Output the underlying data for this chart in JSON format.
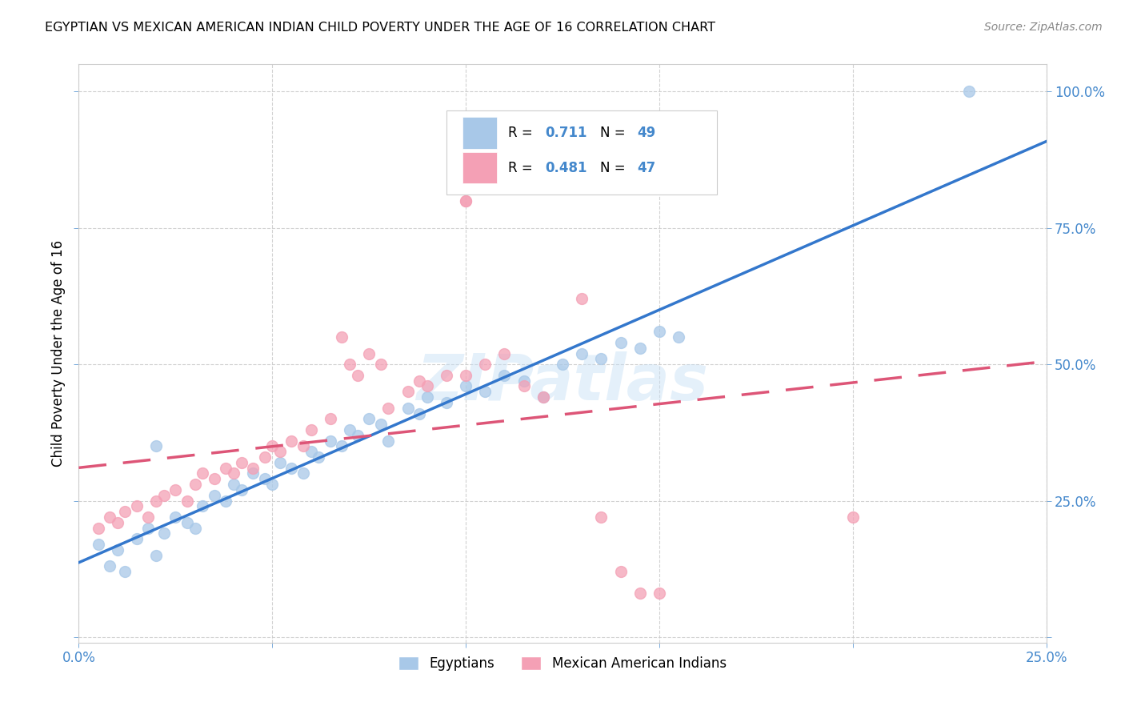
{
  "title": "EGYPTIAN VS MEXICAN AMERICAN INDIAN CHILD POVERTY UNDER THE AGE OF 16 CORRELATION CHART",
  "source": "Source: ZipAtlas.com",
  "ylabel": "Child Poverty Under the Age of 16",
  "xlim": [
    0.0,
    0.25
  ],
  "ylim": [
    0.0,
    1.05
  ],
  "xtick_positions": [
    0.0,
    0.05,
    0.1,
    0.15,
    0.2,
    0.25
  ],
  "xticklabels": [
    "0.0%",
    "",
    "",
    "",
    "",
    "25.0%"
  ],
  "ytick_positions": [
    0.0,
    0.25,
    0.5,
    0.75,
    1.0
  ],
  "yticklabels": [
    "",
    "25.0%",
    "50.0%",
    "75.0%",
    "100.0%"
  ],
  "eg_color": "#a8c8e8",
  "mx_color": "#f4a0b5",
  "eg_line_color": "#3377cc",
  "mx_line_color": "#dd5577",
  "tick_label_color": "#4488cc",
  "grid_color": "#cccccc",
  "egyptian_R": 0.711,
  "egyptian_N": 49,
  "mexican_R": 0.481,
  "mexican_N": 47,
  "legend_labels": [
    "Egyptians",
    "Mexican American Indians"
  ],
  "egyptian_scatter": [
    [
      0.005,
      0.17
    ],
    [
      0.008,
      0.13
    ],
    [
      0.01,
      0.16
    ],
    [
      0.012,
      0.12
    ],
    [
      0.015,
      0.18
    ],
    [
      0.018,
      0.2
    ],
    [
      0.02,
      0.15
    ],
    [
      0.022,
      0.19
    ],
    [
      0.025,
      0.22
    ],
    [
      0.028,
      0.21
    ],
    [
      0.03,
      0.2
    ],
    [
      0.032,
      0.24
    ],
    [
      0.035,
      0.26
    ],
    [
      0.038,
      0.25
    ],
    [
      0.04,
      0.28
    ],
    [
      0.042,
      0.27
    ],
    [
      0.045,
      0.3
    ],
    [
      0.048,
      0.29
    ],
    [
      0.05,
      0.28
    ],
    [
      0.052,
      0.32
    ],
    [
      0.055,
      0.31
    ],
    [
      0.058,
      0.3
    ],
    [
      0.06,
      0.34
    ],
    [
      0.062,
      0.33
    ],
    [
      0.065,
      0.36
    ],
    [
      0.068,
      0.35
    ],
    [
      0.07,
      0.38
    ],
    [
      0.072,
      0.37
    ],
    [
      0.075,
      0.4
    ],
    [
      0.078,
      0.39
    ],
    [
      0.08,
      0.36
    ],
    [
      0.085,
      0.42
    ],
    [
      0.088,
      0.41
    ],
    [
      0.09,
      0.44
    ],
    [
      0.095,
      0.43
    ],
    [
      0.1,
      0.46
    ],
    [
      0.105,
      0.45
    ],
    [
      0.11,
      0.48
    ],
    [
      0.115,
      0.47
    ],
    [
      0.12,
      0.44
    ],
    [
      0.125,
      0.5
    ],
    [
      0.13,
      0.52
    ],
    [
      0.135,
      0.51
    ],
    [
      0.14,
      0.54
    ],
    [
      0.145,
      0.53
    ],
    [
      0.15,
      0.56
    ],
    [
      0.155,
      0.55
    ],
    [
      0.23,
      1.0
    ],
    [
      0.02,
      0.35
    ]
  ],
  "mexican_scatter": [
    [
      0.005,
      0.2
    ],
    [
      0.008,
      0.22
    ],
    [
      0.01,
      0.21
    ],
    [
      0.012,
      0.23
    ],
    [
      0.015,
      0.24
    ],
    [
      0.018,
      0.22
    ],
    [
      0.02,
      0.25
    ],
    [
      0.022,
      0.26
    ],
    [
      0.025,
      0.27
    ],
    [
      0.028,
      0.25
    ],
    [
      0.03,
      0.28
    ],
    [
      0.032,
      0.3
    ],
    [
      0.035,
      0.29
    ],
    [
      0.038,
      0.31
    ],
    [
      0.04,
      0.3
    ],
    [
      0.042,
      0.32
    ],
    [
      0.045,
      0.31
    ],
    [
      0.048,
      0.33
    ],
    [
      0.05,
      0.35
    ],
    [
      0.052,
      0.34
    ],
    [
      0.055,
      0.36
    ],
    [
      0.058,
      0.35
    ],
    [
      0.06,
      0.38
    ],
    [
      0.065,
      0.4
    ],
    [
      0.068,
      0.55
    ],
    [
      0.07,
      0.5
    ],
    [
      0.072,
      0.48
    ],
    [
      0.075,
      0.52
    ],
    [
      0.078,
      0.5
    ],
    [
      0.08,
      0.42
    ],
    [
      0.085,
      0.45
    ],
    [
      0.088,
      0.47
    ],
    [
      0.09,
      0.46
    ],
    [
      0.095,
      0.48
    ],
    [
      0.1,
      0.48
    ],
    [
      0.105,
      0.5
    ],
    [
      0.11,
      0.52
    ],
    [
      0.115,
      0.46
    ],
    [
      0.1,
      0.8
    ],
    [
      0.1,
      0.8
    ],
    [
      0.13,
      0.62
    ],
    [
      0.135,
      0.22
    ],
    [
      0.14,
      0.12
    ],
    [
      0.145,
      0.08
    ],
    [
      0.15,
      0.08
    ],
    [
      0.2,
      0.22
    ],
    [
      0.12,
      0.44
    ]
  ]
}
